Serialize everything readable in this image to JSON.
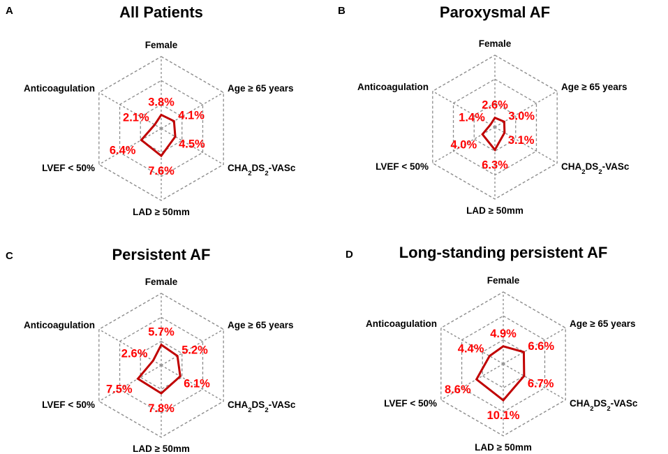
{
  "chart_data": [
    {
      "type": "radar",
      "panel": "A",
      "title": "All Patients",
      "axes": [
        "Female",
        "Age ≥ 65 years",
        "CHA2DS2-VASc",
        "LAD ≥ 50mm",
        "LVEF < 50%",
        "Anticoagulation"
      ],
      "values": [
        3.8,
        4.1,
        4.5,
        7.6,
        6.4,
        2.1
      ],
      "value_labels": [
        "3.8%",
        "4.1%",
        "4.5%",
        "7.6%",
        "6.4%",
        "2.1%"
      ],
      "rmax": 20,
      "rings": 3
    },
    {
      "type": "radar",
      "panel": "B",
      "title": "Paroxysmal AF",
      "axes": [
        "Female",
        "Age ≥ 65 years",
        "CHA2DS2-VASc",
        "LAD ≥ 50mm",
        "LVEF < 50%",
        "Anticoagulation"
      ],
      "values": [
        2.6,
        3.0,
        3.1,
        6.3,
        4.0,
        1.4
      ],
      "value_labels": [
        "2.6%",
        "3.0%",
        "3.1%",
        "6.3%",
        "4.0%",
        "1.4%"
      ],
      "rmax": 20,
      "rings": 3
    },
    {
      "type": "radar",
      "panel": "C",
      "title": "Persistent AF",
      "axes": [
        "Female",
        "Age ≥ 65 years",
        "CHA2DS2-VASc",
        "LAD ≥ 50mm",
        "LVEF < 50%",
        "Anticoagulation"
      ],
      "values": [
        5.7,
        5.2,
        6.1,
        7.8,
        7.5,
        2.6
      ],
      "value_labels": [
        "5.7%",
        "5.2%",
        "6.1%",
        "7.8%",
        "7.5%",
        "2.6%"
      ],
      "rmax": 20,
      "rings": 3
    },
    {
      "type": "radar",
      "panel": "D",
      "title": "Long-standing persistent AF",
      "axes": [
        "Female",
        "Age ≥ 65 years",
        "CHA2DS2-VASc",
        "LAD ≥ 50mm",
        "LVEF < 50%",
        "Anticoagulation"
      ],
      "values": [
        4.9,
        6.6,
        6.7,
        10.1,
        8.6,
        4.4
      ],
      "value_labels": [
        "4.9%",
        "6.6%",
        "6.7%",
        "10.1%",
        "8.6%",
        "4.4%"
      ],
      "rmax": 20,
      "rings": 3
    }
  ],
  "colors": {
    "series": "#c00000",
    "labels": "#ff0000",
    "grid": "#8c8c8c"
  }
}
